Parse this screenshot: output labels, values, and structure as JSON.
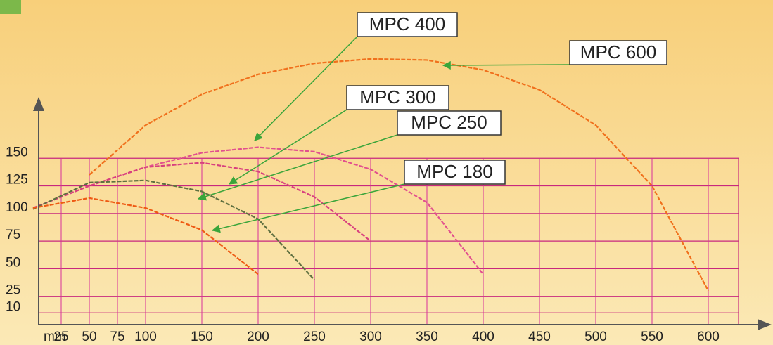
{
  "chart_data": {
    "type": "line",
    "x_label": "mm",
    "x": [
      0,
      50,
      100,
      150,
      200,
      250,
      300,
      350,
      400,
      450,
      500,
      550,
      600
    ],
    "series": [
      {
        "name": "MPC 600",
        "color": "#f0701c",
        "values": [
          null,
          135,
          180,
          208,
          226,
          236,
          240,
          239,
          230,
          212,
          180,
          125,
          30
        ]
      },
      {
        "name": "MPC 400",
        "color": "#e2508e",
        "values": [
          105,
          125,
          142,
          155,
          160,
          156,
          140,
          110,
          45,
          null,
          null,
          null,
          null
        ]
      },
      {
        "name": "MPC 300",
        "color": "#d8407e",
        "values": [
          105,
          125,
          142,
          146,
          138,
          115,
          75,
          null,
          null,
          null,
          null,
          null,
          null
        ]
      },
      {
        "name": "MPC 250",
        "color": "#5f7040",
        "values": [
          104,
          128,
          130,
          120,
          95,
          40,
          null,
          null,
          null,
          null,
          null,
          null,
          null
        ]
      },
      {
        "name": "MPC 180",
        "color": "#ee5a14",
        "values": [
          105,
          114,
          105,
          85,
          45,
          null,
          null,
          null,
          null,
          null,
          null,
          null,
          null
        ]
      }
    ],
    "xlim": [
      0,
      650
    ],
    "xticks": [
      25,
      50,
      75,
      100,
      150,
      200,
      250,
      300,
      350,
      400,
      450,
      500,
      550,
      600
    ],
    "ylim": [
      0,
      280
    ],
    "yticks": [
      10,
      25,
      50,
      75,
      100,
      125,
      150
    ],
    "grid": true
  }
}
